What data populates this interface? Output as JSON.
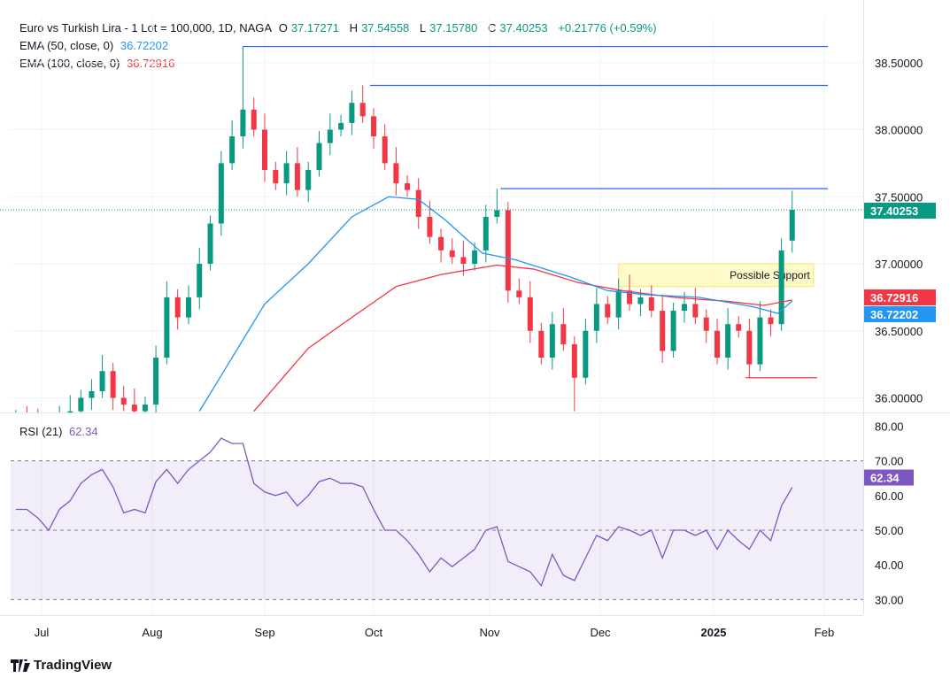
{
  "header": {
    "title": "Euro vs Turkish Lira - 1 Lot = 100,000, 1D, NAGA",
    "o_label": "O",
    "o": "37.17271",
    "h_label": "H",
    "h": "37.54558",
    "l_label": "L",
    "l": "37.15780",
    "c_label": "C",
    "c": "37.40253",
    "change": "+0.21776 (+0.59%)"
  },
  "indicators": {
    "ema50": {
      "label": "EMA (50, close, 0)",
      "value": "36.72202",
      "color": "#2196f3"
    },
    "ema100": {
      "label": "EMA (100, close, 0)",
      "value": "36.72916",
      "color": "#f23645"
    },
    "rsi": {
      "label": "RSI (21)",
      "value": "62.34",
      "color": "#7e57c2"
    }
  },
  "brand": {
    "name": "TradingView"
  },
  "colors": {
    "up": "#089981",
    "down": "#f23645",
    "last_price": "#089981"
  },
  "chart_data": {
    "type": "candlestick",
    "title": "Euro vs Turkish Lira - 1 Lot = 100,000, 1D, NAGA",
    "price_axis": {
      "ticks": [
        "38.50000",
        "38.00000",
        "37.50000",
        "37.00000",
        "36.50000",
        "36.00000"
      ],
      "ylim": [
        35.89,
        38.83
      ]
    },
    "time_axis": {
      "ticks": [
        {
          "label": "Jul",
          "date": "2024-07-01"
        },
        {
          "label": "Aug",
          "date": "2024-08-01"
        },
        {
          "label": "Sep",
          "date": "2024-09-01"
        },
        {
          "label": "Oct",
          "date": "2024-10-01"
        },
        {
          "label": "Nov",
          "date": "2024-11-01"
        },
        {
          "label": "Dec",
          "date": "2024-12-01"
        },
        {
          "label": "2025",
          "date": "2025-01-01",
          "bold": true
        },
        {
          "label": "Feb",
          "date": "2025-02-01"
        }
      ]
    },
    "last_price": "37.40253",
    "ema50_label": "36.72202",
    "ema100_label": "36.72916",
    "closes": [
      [
        "2024-06-24",
        35.85
      ],
      [
        "2024-06-27",
        35.8
      ],
      [
        "2024-06-30",
        35.75
      ],
      [
        "2024-07-03",
        35.8
      ],
      [
        "2024-07-06",
        35.85
      ],
      [
        "2024-07-09",
        35.9
      ],
      [
        "2024-07-12",
        36.0
      ],
      [
        "2024-07-15",
        36.05
      ],
      [
        "2024-07-18",
        36.2
      ],
      [
        "2024-07-21",
        36.0
      ],
      [
        "2024-07-24",
        35.95
      ],
      [
        "2024-07-27",
        35.9
      ],
      [
        "2024-07-30",
        35.95
      ],
      [
        "2024-08-02",
        36.3
      ],
      [
        "2024-08-05",
        36.75
      ],
      [
        "2024-08-08",
        36.6
      ],
      [
        "2024-08-11",
        36.75
      ],
      [
        "2024-08-14",
        37.0
      ],
      [
        "2024-08-17",
        37.3
      ],
      [
        "2024-08-20",
        37.75
      ],
      [
        "2024-08-23",
        37.95
      ],
      [
        "2024-08-26",
        38.15
      ],
      [
        "2024-08-29",
        38.0
      ],
      [
        "2024-09-01",
        37.7
      ],
      [
        "2024-09-04",
        37.6
      ],
      [
        "2024-09-07",
        37.75
      ],
      [
        "2024-09-10",
        37.55
      ],
      [
        "2024-09-13",
        37.7
      ],
      [
        "2024-09-16",
        37.9
      ],
      [
        "2024-09-19",
        38.0
      ],
      [
        "2024-09-22",
        38.05
      ],
      [
        "2024-09-25",
        38.2
      ],
      [
        "2024-09-28",
        38.1
      ],
      [
        "2024-10-01",
        37.95
      ],
      [
        "2024-10-04",
        37.75
      ],
      [
        "2024-10-07",
        37.6
      ],
      [
        "2024-10-10",
        37.55
      ],
      [
        "2024-10-13",
        37.35
      ],
      [
        "2024-10-16",
        37.2
      ],
      [
        "2024-10-19",
        37.1
      ],
      [
        "2024-10-22",
        37.05
      ],
      [
        "2024-10-25",
        37.0
      ],
      [
        "2024-10-28",
        37.1
      ],
      [
        "2024-10-31",
        37.35
      ],
      [
        "2024-11-03",
        37.4
      ],
      [
        "2024-11-06",
        36.8
      ],
      [
        "2024-11-09",
        36.75
      ],
      [
        "2024-11-12",
        36.5
      ],
      [
        "2024-11-15",
        36.3
      ],
      [
        "2024-11-18",
        36.55
      ],
      [
        "2024-11-21",
        36.4
      ],
      [
        "2024-11-24",
        36.15
      ],
      [
        "2024-11-27",
        36.5
      ],
      [
        "2024-11-30",
        36.7
      ],
      [
        "2024-12-03",
        36.6
      ],
      [
        "2024-12-06",
        36.8
      ],
      [
        "2024-12-09",
        36.7
      ],
      [
        "2024-12-12",
        36.75
      ],
      [
        "2024-12-15",
        36.65
      ],
      [
        "2024-12-18",
        36.35
      ],
      [
        "2024-12-21",
        36.65
      ],
      [
        "2024-12-24",
        36.7
      ],
      [
        "2024-12-27",
        36.6
      ],
      [
        "2024-12-30",
        36.5
      ],
      [
        "2025-01-02",
        36.3
      ],
      [
        "2025-01-05",
        36.55
      ],
      [
        "2025-01-08",
        36.5
      ],
      [
        "2025-01-11",
        36.25
      ],
      [
        "2025-01-14",
        36.6
      ],
      [
        "2025-01-17",
        36.55
      ],
      [
        "2025-01-20",
        37.1
      ],
      [
        "2025-01-23",
        37.40253
      ]
    ],
    "extreme_highs": [
      [
        "2024-08-26",
        38.62
      ],
      [
        "2024-09-28",
        38.33
      ],
      [
        "2024-11-03",
        37.56
      ],
      [
        "2025-01-23",
        37.54558
      ]
    ],
    "extreme_lows": [
      [
        "2024-11-24",
        35.9
      ],
      [
        "2025-01-11",
        36.15
      ]
    ],
    "ema50": [
      [
        "2024-08-14",
        35.9
      ],
      [
        "2024-09-01",
        36.7
      ],
      [
        "2024-09-13",
        37.0
      ],
      [
        "2024-09-25",
        37.35
      ],
      [
        "2024-10-05",
        37.5
      ],
      [
        "2024-10-13",
        37.48
      ],
      [
        "2024-10-20",
        37.33
      ],
      [
        "2024-10-30",
        37.08
      ],
      [
        "2024-11-08",
        37.03
      ],
      [
        "2024-11-23",
        36.9
      ],
      [
        "2024-12-03",
        36.8
      ],
      [
        "2024-12-13",
        36.77
      ],
      [
        "2024-12-28",
        36.75
      ],
      [
        "2025-01-12",
        36.68
      ],
      [
        "2025-01-19",
        36.63
      ],
      [
        "2025-01-23",
        36.72202
      ]
    ],
    "ema100": [
      [
        "2024-08-29",
        35.9
      ],
      [
        "2024-09-13",
        36.37
      ],
      [
        "2024-09-25",
        36.6
      ],
      [
        "2024-10-07",
        36.83
      ],
      [
        "2024-10-19",
        36.92
      ],
      [
        "2024-11-03",
        36.99
      ],
      [
        "2024-11-13",
        36.96
      ],
      [
        "2024-11-25",
        36.86
      ],
      [
        "2024-12-07",
        36.8
      ],
      [
        "2024-12-21",
        36.75
      ],
      [
        "2025-01-05",
        36.72
      ],
      [
        "2025-01-15",
        36.69
      ],
      [
        "2025-01-23",
        36.72916
      ]
    ],
    "rsi": {
      "ticks": [
        "80.00",
        "70.00",
        "60.00",
        "50.00",
        "40.00",
        "30.00"
      ],
      "band": [
        30,
        70
      ],
      "values": [
        56,
        56,
        53.5,
        50,
        56,
        58.5,
        63.5,
        66,
        67.5,
        62.5,
        55,
        56,
        55,
        64,
        67.5,
        63.5,
        67.5,
        70,
        72.5,
        76.5,
        75,
        75,
        63.5,
        61,
        60,
        61,
        57,
        60,
        64,
        65,
        63.5,
        63.5,
        62.5,
        56,
        50,
        50,
        47,
        43,
        38,
        42,
        39.5,
        42,
        44.5,
        50,
        51,
        41,
        39.5,
        38,
        34,
        43,
        37,
        35.5,
        42,
        48.5,
        47,
        51,
        50,
        48.5,
        50,
        42,
        50,
        50,
        48.5,
        50,
        44.5,
        50,
        47,
        44.5,
        50,
        47,
        57,
        62.34
      ]
    },
    "annotations": {
      "resistance_lines": [
        {
          "price": 38.62,
          "from": "2024-08-26",
          "to": "2025-02-02",
          "color": "#2962ff"
        },
        {
          "price": 38.33,
          "from": "2024-09-30",
          "to": "2025-02-02",
          "color": "#2962ff"
        },
        {
          "price": 37.56,
          "from": "2024-11-04",
          "to": "2025-02-02",
          "color": "#2962ff"
        }
      ],
      "support_line": {
        "price": 36.15,
        "from": "2025-01-10",
        "to": "2025-01-30",
        "color": "#f23645"
      },
      "support_zone": {
        "label": "Possible Support",
        "top": 37.0,
        "bottom": 36.83,
        "from": "2024-12-06",
        "to": "2025-01-29",
        "color": "#fff59d"
      }
    }
  }
}
